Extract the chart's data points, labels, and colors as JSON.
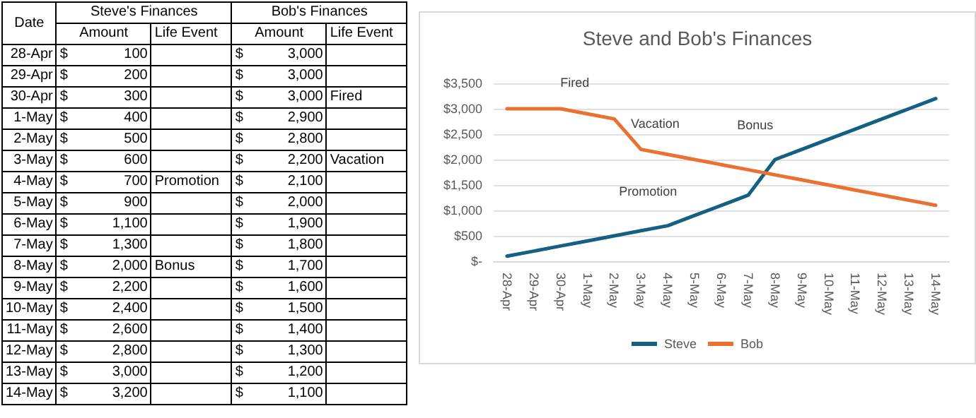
{
  "chart_data": {
    "type": "line",
    "title": "Steve and Bob's Finances",
    "categories": [
      "28-Apr",
      "29-Apr",
      "30-Apr",
      "1-May",
      "2-May",
      "3-May",
      "4-May",
      "5-May",
      "6-May",
      "7-May",
      "8-May",
      "9-May",
      "10-May",
      "11-May",
      "12-May",
      "13-May",
      "14-May"
    ],
    "series": [
      {
        "name": "Steve",
        "color": "#156082",
        "values": [
          100,
          200,
          300,
          400,
          500,
          600,
          700,
          900,
          1100,
          1300,
          2000,
          2200,
          2400,
          2600,
          2800,
          3000,
          3200
        ],
        "value_labels": [
          "$ 100",
          "$ 200",
          "$ 300",
          "$ 400",
          "$ 500",
          "$ 600",
          "$ 700",
          "$ 900",
          "$ 1,100",
          "$ 1,300",
          "$ 2,000",
          "$ 2,200",
          "$ 2,400",
          "$ 2,600",
          "$ 2,800",
          "$ 3,000",
          "$ 3,200"
        ]
      },
      {
        "name": "Bob",
        "color": "#e97132",
        "values": [
          3000,
          3000,
          3000,
          2900,
          2800,
          2200,
          2100,
          2000,
          1900,
          1800,
          1700,
          1600,
          1500,
          1400,
          1300,
          1200,
          1100
        ],
        "value_labels": [
          "$ 3,000",
          "$ 3,000",
          "$ 3,000",
          "$ 2,900",
          "$ 2,800",
          "$ 2,200",
          "$ 2,100",
          "$ 2,000",
          "$ 1,900",
          "$ 1,800",
          "$ 1,700",
          "$ 1,600",
          "$ 1,500",
          "$ 1,400",
          "$ 1,300",
          "$ 1,200",
          "$ 1,100"
        ]
      }
    ],
    "ylim": [
      0,
      3500
    ],
    "yticks": [
      {
        "value": 0,
        "label": "$-"
      },
      {
        "value": 500,
        "label": "$500"
      },
      {
        "value": 1000,
        "label": "$1,000"
      },
      {
        "value": 1500,
        "label": "$1,500"
      },
      {
        "value": 2000,
        "label": "$2,000"
      },
      {
        "value": 2500,
        "label": "$2,500"
      },
      {
        "value": 3000,
        "label": "$3,000"
      },
      {
        "value": 3500,
        "label": "$3,500"
      }
    ],
    "grid": "y",
    "legend": "bottom",
    "marker": "none",
    "line_style": "solid",
    "data_labels": true,
    "annotations": [
      "Date",
      "Steve's Finances",
      "Bob's Finances",
      "Amount",
      "Life Event",
      {
        "text": "Fired",
        "x": "30-Apr",
        "y": 3000
      },
      {
        "text": "Vacation",
        "x": "3-May",
        "y": 2200
      },
      {
        "text": "Promotion",
        "x": "4-May",
        "y": 700
      },
      {
        "text": "Bonus",
        "x": "8-May",
        "y": 2000
      }
    ]
  }
}
